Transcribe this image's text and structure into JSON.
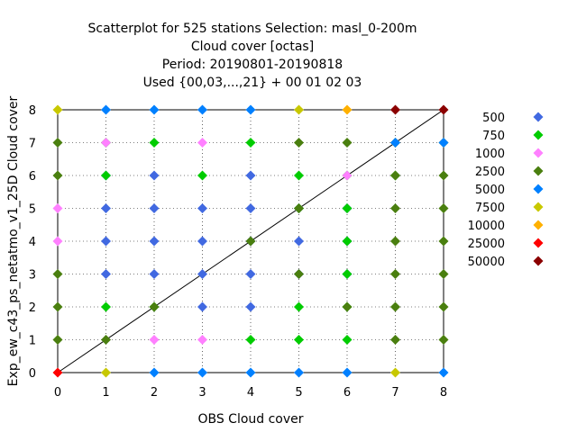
{
  "chart_data": {
    "type": "scatter",
    "title_lines": [
      "Scatterplot for  525 stations Selection: masl_0-200m",
      "Cloud cover [octas]",
      "Period: 20190801-20190818",
      "Used {00,03,...,21} + 00 01 02 03"
    ],
    "xlabel": "OBS Cloud cover",
    "ylabel": "Exp_ew_c43_ps_netatmo_v1_25D Cloud cover",
    "xlim": [
      0,
      8
    ],
    "ylim": [
      0,
      8
    ],
    "xticks": [
      "0",
      "1",
      "2",
      "3",
      "4",
      "5",
      "6",
      "7",
      "8"
    ],
    "yticks": [
      "0",
      "1",
      "2",
      "3",
      "4",
      "5",
      "6",
      "7",
      "8"
    ],
    "grid": true,
    "legend_position": "right",
    "diagonal_line": true,
    "series": [
      {
        "name": "500",
        "color": "#4169e1",
        "points": [
          [
            1,
            6
          ],
          [
            2,
            5
          ],
          [
            3,
            5
          ],
          [
            4,
            5
          ],
          [
            5,
            5
          ],
          [
            1,
            4
          ],
          [
            2,
            4
          ],
          [
            3,
            4
          ],
          [
            4,
            4
          ],
          [
            5,
            4
          ],
          [
            1,
            3
          ],
          [
            2,
            3
          ],
          [
            3,
            3
          ],
          [
            4,
            3
          ],
          [
            5,
            3
          ],
          [
            2,
            6
          ],
          [
            6,
            4
          ],
          [
            6,
            3
          ],
          [
            1,
            5
          ],
          [
            6,
            5
          ],
          [
            4,
            6
          ],
          [
            3,
            2
          ],
          [
            4,
            2
          ]
        ]
      },
      {
        "name": "750",
        "color": "#00cc00",
        "points": [
          [
            1,
            7
          ],
          [
            2,
            7
          ],
          [
            4,
            7
          ],
          [
            1,
            6
          ],
          [
            3,
            6
          ],
          [
            5,
            6
          ],
          [
            6,
            5
          ],
          [
            5,
            5
          ],
          [
            6,
            4
          ],
          [
            6,
            3
          ],
          [
            6,
            2
          ],
          [
            5,
            2
          ],
          [
            1,
            2
          ],
          [
            2,
            2
          ],
          [
            4,
            1
          ],
          [
            6,
            1
          ],
          [
            7,
            6
          ],
          [
            6,
            6
          ],
          [
            5,
            1
          ]
        ]
      },
      {
        "name": "1000",
        "color": "#ff80ff",
        "points": [
          [
            1,
            7
          ],
          [
            3,
            7
          ],
          [
            0,
            5
          ],
          [
            0,
            4
          ],
          [
            2,
            1
          ],
          [
            3,
            1
          ],
          [
            6,
            6
          ]
        ]
      },
      {
        "name": "2500",
        "color": "#4a7f0f",
        "points": [
          [
            0,
            7
          ],
          [
            0,
            6
          ],
          [
            0,
            3
          ],
          [
            0,
            2
          ],
          [
            0,
            1
          ],
          [
            1,
            1
          ],
          [
            2,
            2
          ],
          [
            5,
            7
          ],
          [
            6,
            7
          ],
          [
            7,
            7
          ],
          [
            7,
            6
          ],
          [
            8,
            7
          ],
          [
            8,
            6
          ],
          [
            7,
            5
          ],
          [
            8,
            5
          ],
          [
            7,
            4
          ],
          [
            8,
            4
          ],
          [
            7,
            3
          ],
          [
            8,
            3
          ],
          [
            7,
            2
          ],
          [
            8,
            2
          ],
          [
            7,
            1
          ],
          [
            8,
            1
          ],
          [
            5,
            5
          ],
          [
            4,
            4
          ],
          [
            5,
            3
          ],
          [
            6,
            2
          ]
        ]
      },
      {
        "name": "5000",
        "color": "#0080ff",
        "points": [
          [
            1,
            8
          ],
          [
            2,
            8
          ],
          [
            3,
            8
          ],
          [
            4,
            8
          ],
          [
            2,
            0
          ],
          [
            3,
            0
          ],
          [
            4,
            0
          ],
          [
            5,
            0
          ],
          [
            6,
            0
          ],
          [
            8,
            0
          ],
          [
            7,
            7
          ],
          [
            8,
            7
          ]
        ]
      },
      {
        "name": "7500",
        "color": "#c8c800",
        "points": [
          [
            0,
            8
          ],
          [
            5,
            8
          ],
          [
            1,
            0
          ],
          [
            7,
            0
          ]
        ]
      },
      {
        "name": "10000",
        "color": "#ffb000",
        "points": [
          [
            6,
            8
          ]
        ]
      },
      {
        "name": "25000",
        "color": "#ff0000",
        "points": [
          [
            0,
            0
          ]
        ]
      },
      {
        "name": "50000",
        "color": "#8b0000",
        "points": [
          [
            7,
            8
          ],
          [
            8,
            8
          ]
        ]
      }
    ]
  }
}
